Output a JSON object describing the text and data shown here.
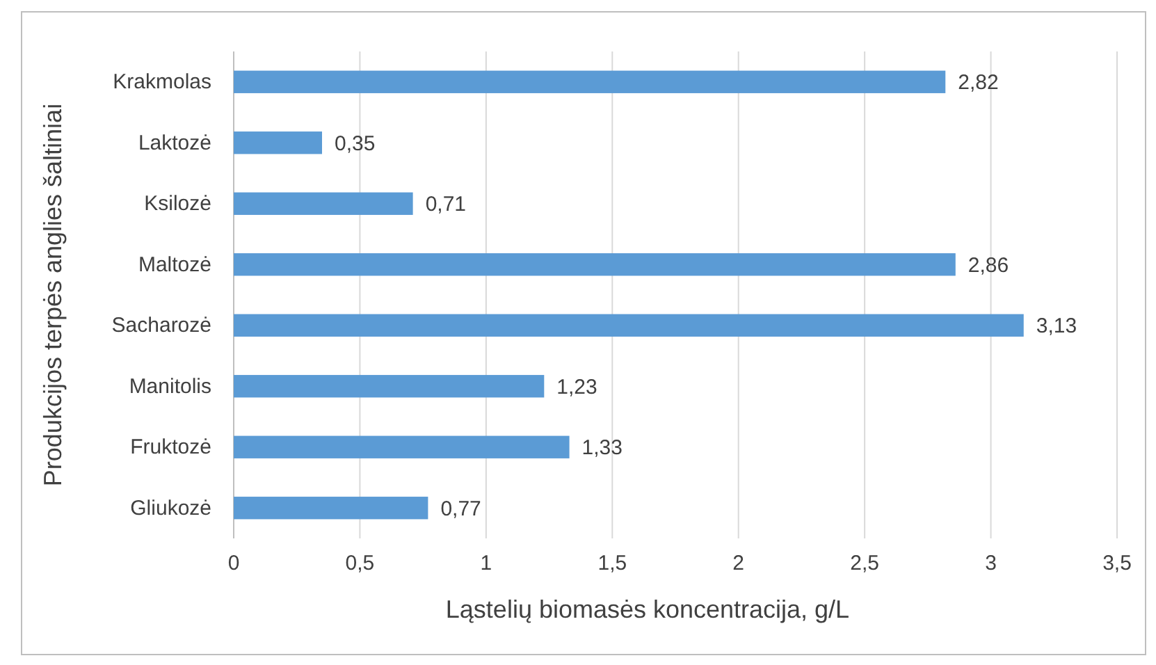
{
  "chart_data": {
    "type": "bar",
    "orientation": "horizontal",
    "xlabel": "Ląstelių biomasės koncentracija, g/L",
    "ylabel": "Produkcijos terpės anglies šaltiniai",
    "categories": [
      "Krakmolas",
      "Laktozė",
      "Ksilozė",
      "Maltozė",
      "Sacharozė",
      "Manitolis",
      "Fruktozė",
      "Gliukozė"
    ],
    "values": [
      2.82,
      0.35,
      0.71,
      2.86,
      3.13,
      1.23,
      1.33,
      0.77
    ],
    "value_labels": [
      "2,82",
      "0,35",
      "0,71",
      "2,86",
      "3,13",
      "1,23",
      "1,33",
      "0,77"
    ],
    "color": "#5b9bd5",
    "xlim": [
      0,
      3.5
    ],
    "xticks": [
      0,
      {
        "value": 0.5,
        "label": "0,5"
      },
      1,
      {
        "value": 1.5,
        "label": "1,5"
      },
      2,
      {
        "value": 2.5,
        "label": "2,5"
      },
      3,
      {
        "value": 3.5,
        "label": "3,5"
      }
    ],
    "grid": "x"
  }
}
